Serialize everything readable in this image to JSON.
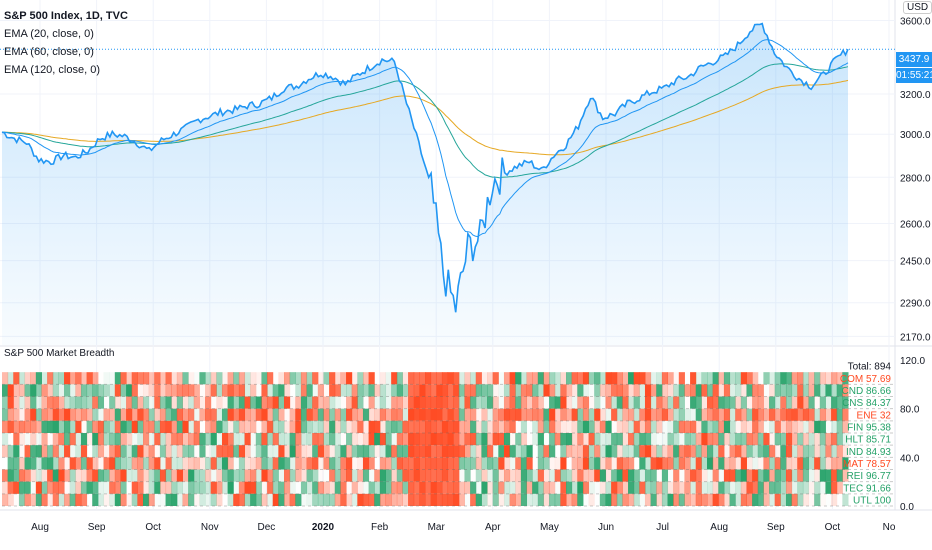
{
  "header": {
    "title": "S&P 500 Index, 1D, TVC",
    "currency": "USD",
    "indicators": [
      "EMA (20, close, 0)",
      "EMA (60, close, 0)",
      "EMA (120, close, 0)"
    ],
    "last_price": "3437.9",
    "countdown": "01:55:21"
  },
  "colors": {
    "price": "#2196f3",
    "ema20": "#2196f3",
    "ema60": "#26a69a",
    "ema120": "#e6a823",
    "green": "#26a269",
    "red": "#ff4a22"
  },
  "chart_data": [
    {
      "type": "line",
      "title": "S&P 500 Index, 1D, TVC",
      "yscale": "log",
      "ylim": [
        2140,
        3720
      ],
      "y_ticks": [
        "3600.0",
        "3200.0",
        "3000.0",
        "2800.0",
        "2600.0",
        "2450.0",
        "2290.0",
        "2170.0"
      ],
      "x_ticks": [
        "Aug",
        "Sep",
        "Oct",
        "Nov",
        "Dec",
        "2020",
        "Feb",
        "Mar",
        "Apr",
        "May",
        "Jun",
        "Jul",
        "Aug",
        "Sep",
        "Oct",
        "No"
      ],
      "price_weekly": [
        3010,
        2980,
        2960,
        2880,
        2870,
        2900,
        2890,
        2920,
        2980,
        3000,
        2990,
        2960,
        2920,
        2970,
        3000,
        3030,
        3070,
        3090,
        3110,
        3120,
        3140,
        3150,
        3180,
        3230,
        3240,
        3280,
        3310,
        3290,
        3250,
        3300,
        3340,
        3380,
        3370,
        3150,
        2950,
        2750,
        2400,
        2270,
        2500,
        2540,
        2780,
        2820,
        2850,
        2870,
        2830,
        2900,
        2950,
        3040,
        3190,
        3080,
        3100,
        3150,
        3180,
        3210,
        3230,
        3270,
        3290,
        3340,
        3370,
        3400,
        3460,
        3540,
        3580,
        3420,
        3340,
        3280,
        3240,
        3300,
        3380,
        3437.9
      ]
    },
    {
      "type": "heatmap",
      "title": "S&P 500 Market Breadth",
      "ylim": [
        0,
        120
      ],
      "y_ticks": [
        "120.0",
        "80.0",
        "40.0",
        "0.0"
      ],
      "total": "Total: 894",
      "sectors": [
        {
          "label": "COM 57.69",
          "value": 57.69
        },
        {
          "label": "CND 86.66",
          "value": 86.66
        },
        {
          "label": "CNS 84.37",
          "value": 84.37
        },
        {
          "label": "ENE 32",
          "value": 32
        },
        {
          "label": "FIN 95.38",
          "value": 95.38
        },
        {
          "label": "HLT 85.71",
          "value": 85.71
        },
        {
          "label": "IND 84.93",
          "value": 84.93
        },
        {
          "label": "MAT 78.57",
          "value": 78.57
        },
        {
          "label": "REI 96.77",
          "value": 96.77
        },
        {
          "label": "TEC 91.66",
          "value": 91.66
        },
        {
          "label": "UTL 100",
          "value": 100
        }
      ]
    }
  ]
}
